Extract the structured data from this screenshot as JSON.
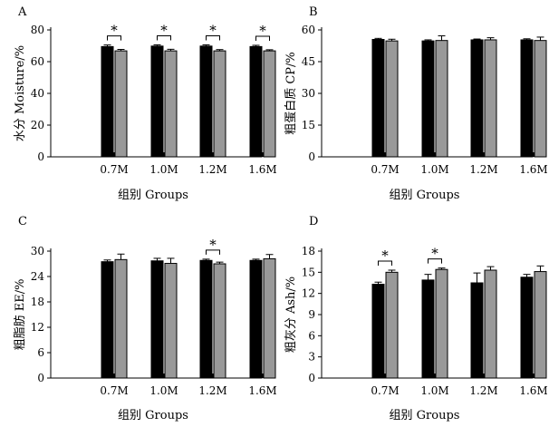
{
  "chart_data": [
    {
      "panel": "A",
      "type": "bar",
      "ylabel": "水分 Moisture/%",
      "xlabel": "组别 Groups",
      "ylim": [
        0,
        80
      ],
      "yticks": [
        0,
        20,
        40,
        60,
        80
      ],
      "categories": [
        "0.7M",
        "1.0M",
        "1.2M",
        "1.6M"
      ],
      "series": [
        {
          "color": "#000000",
          "values": [
            69.5,
            69.8,
            69.8,
            69.5
          ],
          "errors": [
            1.0,
            0.8,
            0.8,
            0.8
          ]
        },
        {
          "color": "#999999",
          "values": [
            66.8,
            66.8,
            66.8,
            66.8
          ],
          "errors": [
            0.9,
            1.0,
            0.8,
            0.7
          ]
        }
      ],
      "significance": [
        {
          "category": 0,
          "label": "*"
        },
        {
          "category": 1,
          "label": "*"
        },
        {
          "category": 2,
          "label": "*"
        },
        {
          "category": 3,
          "label": "*"
        }
      ]
    },
    {
      "panel": "B",
      "type": "bar",
      "ylabel": "粗蛋白质 CP/%",
      "xlabel": "组别 Groups",
      "ylim": [
        0,
        60
      ],
      "yticks": [
        0,
        15,
        30,
        45,
        60
      ],
      "categories": [
        "0.7M",
        "1.0M",
        "1.2M",
        "1.6M"
      ],
      "series": [
        {
          "color": "#000000",
          "values": [
            55.5,
            54.8,
            55.3,
            55.3
          ],
          "errors": [
            0.5,
            0.5,
            0.4,
            0.5
          ]
        },
        {
          "color": "#999999",
          "values": [
            54.8,
            55.0,
            55.3,
            55.0
          ],
          "errors": [
            0.8,
            2.2,
            1.0,
            1.6
          ]
        }
      ],
      "significance": []
    },
    {
      "panel": "C",
      "type": "bar",
      "ylabel": "粗脂肪 EE/%",
      "xlabel": "组别 Groups",
      "ylim": [
        0,
        30
      ],
      "yticks": [
        0,
        6,
        12,
        18,
        24,
        30
      ],
      "categories": [
        "0.7M",
        "1.0M",
        "1.2M",
        "1.6M"
      ],
      "series": [
        {
          "color": "#000000",
          "values": [
            27.5,
            27.7,
            27.8,
            27.8
          ],
          "errors": [
            0.4,
            0.6,
            0.3,
            0.3
          ]
        },
        {
          "color": "#999999",
          "values": [
            28.0,
            27.1,
            27.0,
            28.2
          ],
          "errors": [
            1.3,
            1.2,
            0.4,
            1.0
          ]
        }
      ],
      "significance": [
        {
          "category": 2,
          "label": "*"
        }
      ]
    },
    {
      "panel": "D",
      "type": "bar",
      "ylabel": "粗灰分 Ash/%",
      "xlabel": "组别 Groups",
      "ylim": [
        0,
        18
      ],
      "yticks": [
        0,
        3,
        6,
        9,
        12,
        15,
        18
      ],
      "categories": [
        "0.7M",
        "1.0M",
        "1.2M",
        "1.6M"
      ],
      "series": [
        {
          "color": "#000000",
          "values": [
            13.3,
            13.9,
            13.5,
            14.3
          ],
          "errors": [
            0.3,
            0.8,
            1.4,
            0.4
          ]
        },
        {
          "color": "#999999",
          "values": [
            15.0,
            15.4,
            15.3,
            15.1
          ],
          "errors": [
            0.3,
            0.2,
            0.5,
            0.8
          ]
        }
      ],
      "significance": [
        {
          "category": 0,
          "label": "*"
        },
        {
          "category": 1,
          "label": "*"
        }
      ]
    }
  ]
}
